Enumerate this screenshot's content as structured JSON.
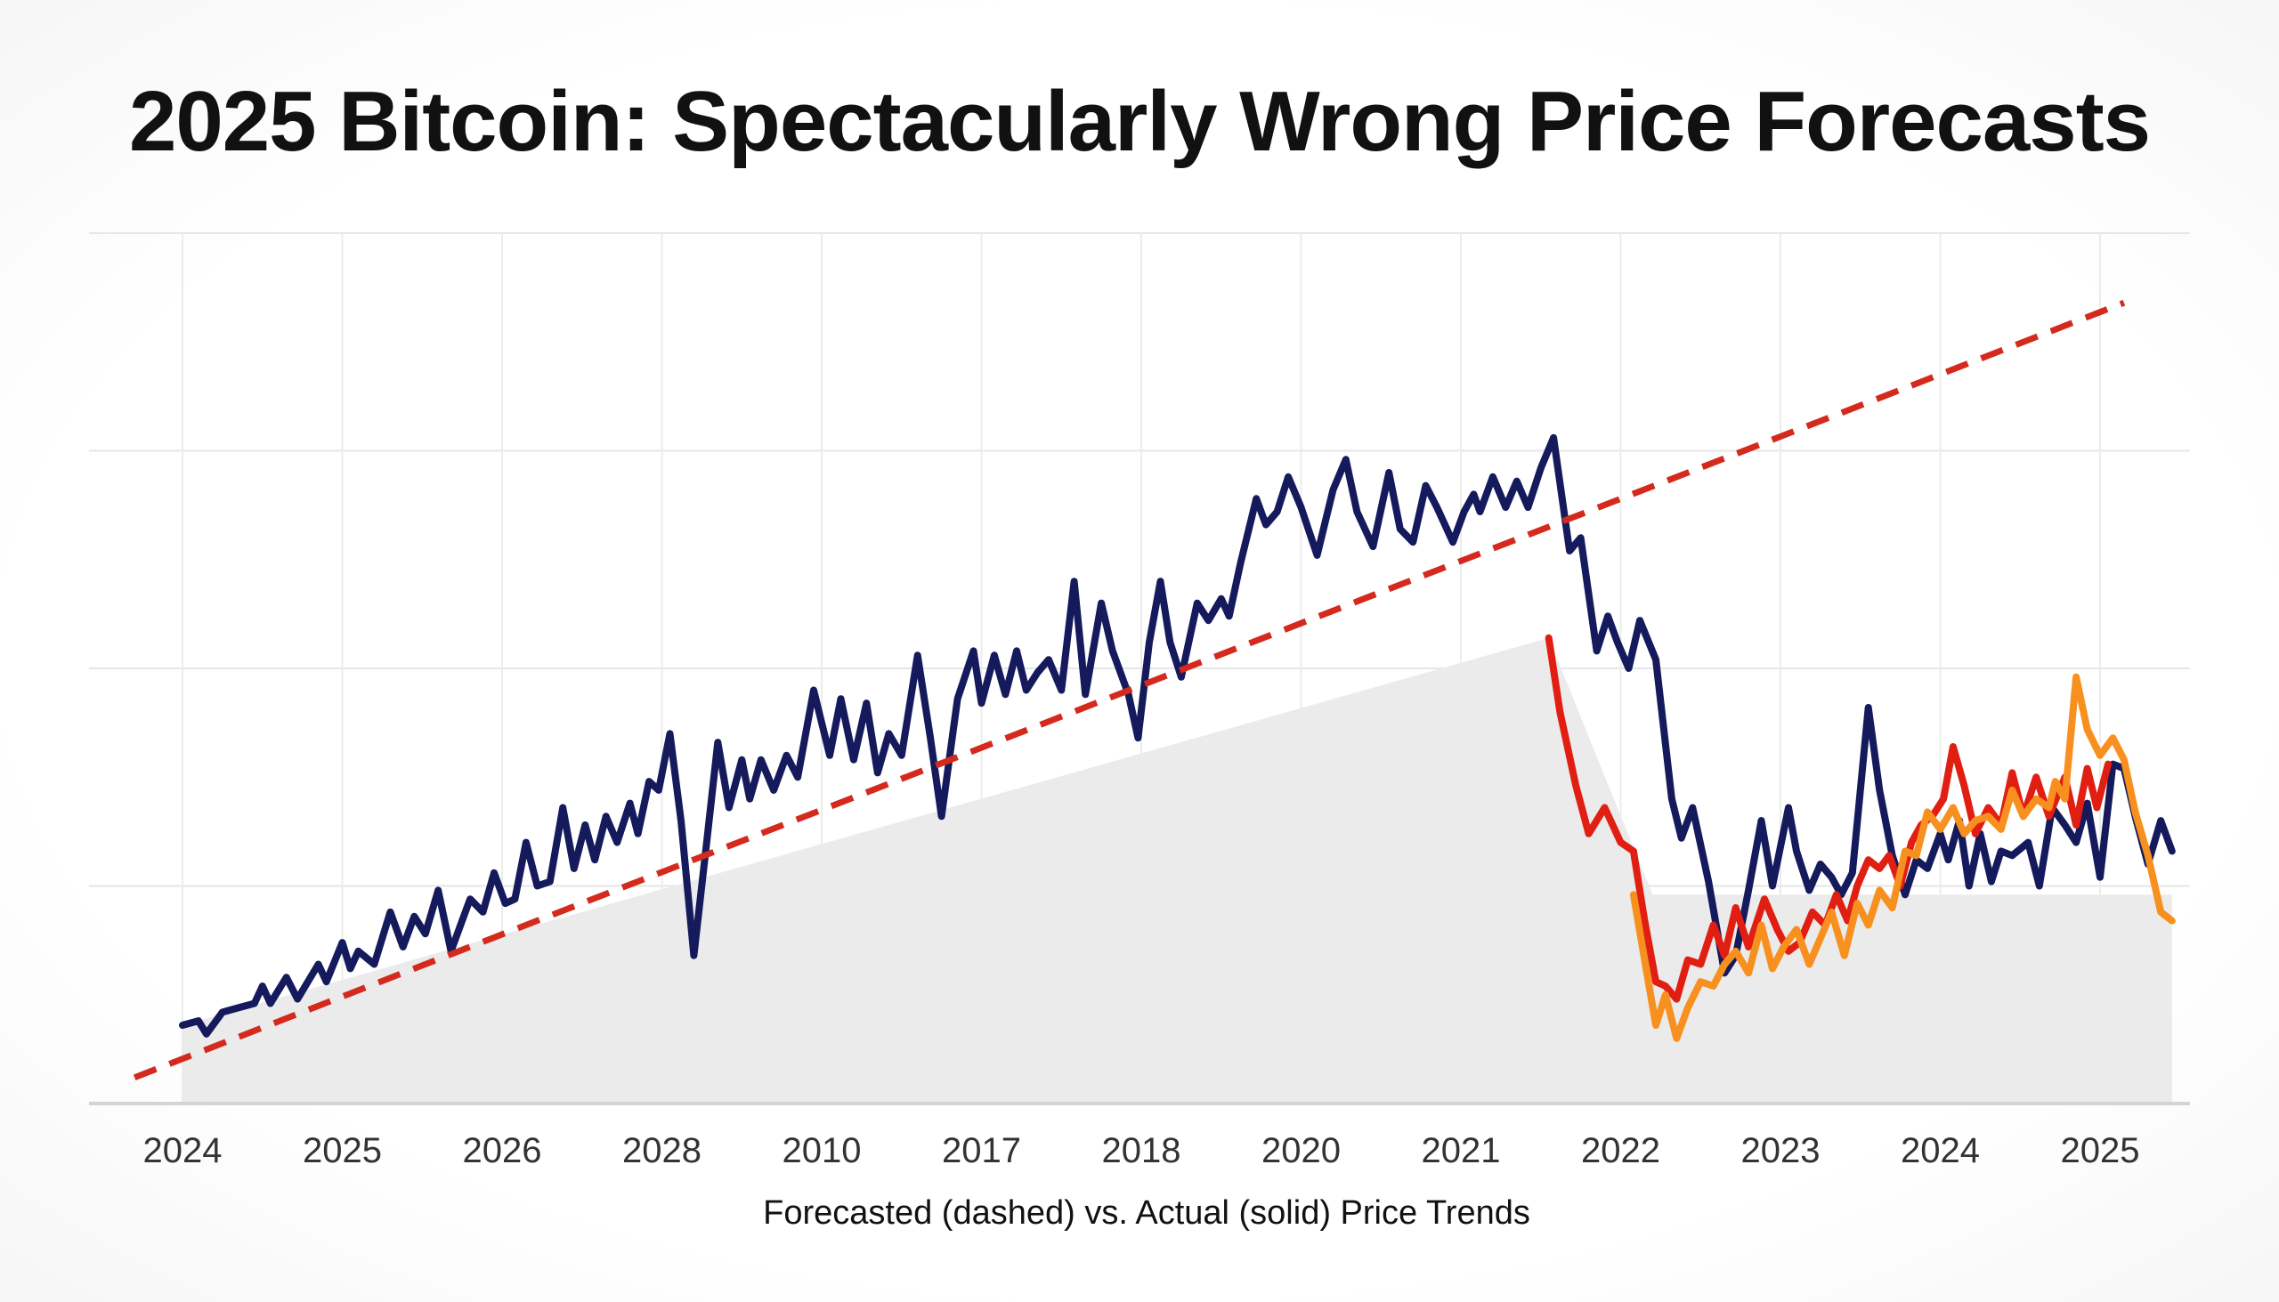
{
  "chart_data": {
    "type": "line",
    "title": "2025 Bitcoin: Spectacularly Wrong Price Forecasts",
    "xlabel": "Forecasted (dashed) vs. Actual (solid) Price Trends",
    "ylabel": "",
    "categories": [
      "2024",
      "2025",
      "2026",
      "2028",
      "2010",
      "2017",
      "2018",
      "2020",
      "2021",
      "2022",
      "2023",
      "2024",
      "2025"
    ],
    "ylim": [
      0,
      100
    ],
    "grid": true,
    "series": [
      {
        "style": "dashed",
        "color": "#d42a1e",
        "points": [
          [
            -0.3,
            3
          ],
          [
            12.15,
            92
          ]
        ]
      },
      {
        "style": "solid",
        "color": "#141a5c",
        "points": [
          [
            0,
            9
          ],
          [
            0.1,
            9.5
          ],
          [
            0.15,
            8
          ],
          [
            0.25,
            10.5
          ],
          [
            0.35,
            11
          ],
          [
            0.45,
            11.5
          ],
          [
            0.5,
            13.5
          ],
          [
            0.55,
            11.5
          ],
          [
            0.65,
            14.5
          ],
          [
            0.72,
            12
          ],
          [
            0.85,
            16
          ],
          [
            0.9,
            14
          ],
          [
            1.0,
            18.5
          ],
          [
            1.05,
            15.5
          ],
          [
            1.1,
            17.5
          ],
          [
            1.2,
            16
          ],
          [
            1.3,
            22
          ],
          [
            1.38,
            18
          ],
          [
            1.45,
            21.5
          ],
          [
            1.52,
            19.5
          ],
          [
            1.6,
            24.5
          ],
          [
            1.68,
            17.5
          ],
          [
            1.75,
            21
          ],
          [
            1.8,
            23.5
          ],
          [
            1.88,
            22
          ],
          [
            1.95,
            26.5
          ],
          [
            2.02,
            23
          ],
          [
            2.08,
            23.5
          ],
          [
            2.15,
            30
          ],
          [
            2.22,
            25
          ],
          [
            2.3,
            25.5
          ],
          [
            2.38,
            34
          ],
          [
            2.45,
            27
          ],
          [
            2.52,
            32
          ],
          [
            2.58,
            28
          ],
          [
            2.65,
            33
          ],
          [
            2.72,
            30
          ],
          [
            2.8,
            34.5
          ],
          [
            2.85,
            31
          ],
          [
            2.92,
            37
          ],
          [
            2.98,
            36
          ],
          [
            3.05,
            42.5
          ],
          [
            3.12,
            32.5
          ],
          [
            3.2,
            17
          ],
          [
            3.28,
            30
          ],
          [
            3.35,
            41.5
          ],
          [
            3.42,
            34
          ],
          [
            3.5,
            39.5
          ],
          [
            3.55,
            35
          ],
          [
            3.62,
            39.5
          ],
          [
            3.7,
            36
          ],
          [
            3.78,
            40
          ],
          [
            3.85,
            37.5
          ],
          [
            3.95,
            47.5
          ],
          [
            4.05,
            40
          ],
          [
            4.12,
            46.5
          ],
          [
            4.2,
            39.5
          ],
          [
            4.28,
            46
          ],
          [
            4.35,
            38
          ],
          [
            4.42,
            42.5
          ],
          [
            4.5,
            40
          ],
          [
            4.6,
            51.5
          ],
          [
            4.68,
            42
          ],
          [
            4.75,
            33
          ],
          [
            4.85,
            46.5
          ],
          [
            4.95,
            52
          ],
          [
            5.0,
            46
          ],
          [
            5.08,
            51.5
          ],
          [
            5.15,
            47
          ],
          [
            5.22,
            52
          ],
          [
            5.28,
            47.5
          ],
          [
            5.35,
            49.5
          ],
          [
            5.42,
            51
          ],
          [
            5.5,
            47.5
          ],
          [
            5.58,
            60
          ],
          [
            5.65,
            47
          ],
          [
            5.75,
            57.5
          ],
          [
            5.82,
            52
          ],
          [
            5.92,
            47
          ],
          [
            5.98,
            42
          ],
          [
            6.05,
            53
          ],
          [
            6.12,
            60
          ],
          [
            6.18,
            53
          ],
          [
            6.25,
            49
          ],
          [
            6.35,
            57.5
          ],
          [
            6.42,
            55.5
          ],
          [
            6.5,
            58
          ],
          [
            6.55,
            56
          ],
          [
            6.62,
            62
          ],
          [
            6.72,
            69.5
          ],
          [
            6.78,
            66.5
          ],
          [
            6.85,
            68
          ],
          [
            6.92,
            72
          ],
          [
            7.0,
            68.5
          ],
          [
            7.1,
            63
          ],
          [
            7.2,
            70.5
          ],
          [
            7.28,
            74
          ],
          [
            7.35,
            68
          ],
          [
            7.45,
            64
          ],
          [
            7.55,
            72.5
          ],
          [
            7.62,
            66
          ],
          [
            7.7,
            64.5
          ],
          [
            7.78,
            71
          ],
          [
            7.85,
            68.5
          ],
          [
            7.95,
            64.5
          ],
          [
            8.02,
            68
          ],
          [
            8.08,
            70
          ],
          [
            8.12,
            68
          ],
          [
            8.2,
            72
          ],
          [
            8.28,
            68.5
          ],
          [
            8.35,
            71.5
          ],
          [
            8.42,
            68.5
          ],
          [
            8.5,
            73
          ],
          [
            8.58,
            76.5
          ],
          [
            8.68,
            63.5
          ],
          [
            8.75,
            65
          ],
          [
            8.85,
            52
          ],
          [
            8.92,
            56
          ],
          [
            8.98,
            53
          ],
          [
            9.05,
            50
          ],
          [
            9.12,
            55.5
          ],
          [
            9.22,
            51
          ],
          [
            9.32,
            35
          ],
          [
            9.38,
            30.5
          ],
          [
            9.45,
            34
          ],
          [
            9.55,
            25.5
          ],
          [
            9.65,
            15
          ],
          [
            9.72,
            17
          ],
          [
            9.8,
            24.5
          ],
          [
            9.88,
            32.5
          ],
          [
            9.95,
            25
          ],
          [
            10.05,
            34
          ],
          [
            10.1,
            29
          ],
          [
            10.18,
            24.5
          ],
          [
            10.25,
            27.5
          ],
          [
            10.32,
            26
          ],
          [
            10.38,
            24
          ],
          [
            10.45,
            26.5
          ],
          [
            10.55,
            45.5
          ],
          [
            10.62,
            36
          ],
          [
            10.7,
            28.5
          ],
          [
            10.78,
            24
          ],
          [
            10.85,
            28
          ],
          [
            10.92,
            27
          ],
          [
            11.0,
            31
          ],
          [
            11.05,
            28
          ],
          [
            11.12,
            32.5
          ],
          [
            11.18,
            25
          ],
          [
            11.25,
            31
          ],
          [
            11.32,
            25.5
          ],
          [
            11.38,
            29
          ],
          [
            11.45,
            28.5
          ],
          [
            11.55,
            30
          ],
          [
            11.62,
            25
          ],
          [
            11.7,
            34
          ],
          [
            11.78,
            32
          ],
          [
            11.85,
            30
          ],
          [
            11.92,
            34.5
          ],
          [
            12.0,
            26
          ],
          [
            12.08,
            39
          ],
          [
            12.15,
            38.5
          ],
          [
            12.22,
            33
          ],
          [
            12.3,
            27.5
          ],
          [
            12.38,
            32.5
          ],
          [
            12.45,
            29
          ]
        ]
      },
      {
        "style": "solid",
        "color": "#e01e12",
        "points": [
          [
            8.55,
            53.5
          ],
          [
            8.62,
            45
          ],
          [
            8.72,
            36.5
          ],
          [
            8.8,
            31
          ],
          [
            8.9,
            34
          ],
          [
            9.0,
            30
          ],
          [
            9.08,
            29
          ],
          [
            9.15,
            21
          ],
          [
            9.22,
            14
          ],
          [
            9.28,
            13.5
          ],
          [
            9.35,
            12
          ],
          [
            9.42,
            16.5
          ],
          [
            9.5,
            16
          ],
          [
            9.58,
            20.5
          ],
          [
            9.65,
            17
          ],
          [
            9.72,
            22.5
          ],
          [
            9.8,
            18
          ],
          [
            9.9,
            23.5
          ],
          [
            9.98,
            20
          ],
          [
            10.05,
            17.5
          ],
          [
            10.12,
            18.5
          ],
          [
            10.2,
            22
          ],
          [
            10.28,
            20.5
          ],
          [
            10.35,
            24
          ],
          [
            10.42,
            21
          ],
          [
            10.48,
            25
          ],
          [
            10.55,
            28
          ],
          [
            10.62,
            27
          ],
          [
            10.68,
            28.5
          ],
          [
            10.75,
            25
          ],
          [
            10.82,
            30
          ],
          [
            10.88,
            32
          ],
          [
            10.95,
            33
          ],
          [
            11.02,
            35
          ],
          [
            11.08,
            41
          ],
          [
            11.15,
            36.5
          ],
          [
            11.22,
            31
          ],
          [
            11.3,
            34
          ],
          [
            11.38,
            32
          ],
          [
            11.45,
            38
          ],
          [
            11.52,
            33
          ],
          [
            11.6,
            37.5
          ],
          [
            11.68,
            33
          ],
          [
            11.78,
            37.5
          ],
          [
            11.85,
            32
          ],
          [
            11.92,
            38.5
          ],
          [
            11.98,
            34
          ],
          [
            12.05,
            39
          ]
        ]
      },
      {
        "style": "solid",
        "color": "#f7901e",
        "points": [
          [
            9.08,
            24
          ],
          [
            9.15,
            16.5
          ],
          [
            9.22,
            9
          ],
          [
            9.28,
            12.5
          ],
          [
            9.35,
            7.5
          ],
          [
            9.42,
            11
          ],
          [
            9.5,
            14
          ],
          [
            9.58,
            13.5
          ],
          [
            9.65,
            16
          ],
          [
            9.72,
            17.5
          ],
          [
            9.8,
            15
          ],
          [
            9.88,
            20.5
          ],
          [
            9.95,
            15.5
          ],
          [
            10.02,
            18
          ],
          [
            10.1,
            20
          ],
          [
            10.18,
            16
          ],
          [
            10.25,
            19
          ],
          [
            10.32,
            22
          ],
          [
            10.4,
            17
          ],
          [
            10.48,
            23
          ],
          [
            10.55,
            20.5
          ],
          [
            10.62,
            24.5
          ],
          [
            10.7,
            22.5
          ],
          [
            10.78,
            29
          ],
          [
            10.85,
            28.5
          ],
          [
            10.92,
            33.5
          ],
          [
            11.0,
            31.5
          ],
          [
            11.08,
            34
          ],
          [
            11.15,
            31
          ],
          [
            11.22,
            32.5
          ],
          [
            11.3,
            33
          ],
          [
            11.38,
            31.5
          ],
          [
            11.45,
            36
          ],
          [
            11.52,
            33
          ],
          [
            11.6,
            35
          ],
          [
            11.68,
            34
          ],
          [
            11.72,
            37
          ],
          [
            11.78,
            35
          ],
          [
            11.85,
            49
          ],
          [
            11.92,
            43
          ],
          [
            12.0,
            40
          ],
          [
            12.08,
            42
          ],
          [
            12.15,
            39.5
          ],
          [
            12.22,
            33.5
          ],
          [
            12.3,
            28.5
          ],
          [
            12.38,
            22
          ],
          [
            12.45,
            21
          ]
        ]
      }
    ],
    "area": {
      "color": "#ebebeb",
      "points": [
        [
          0,
          9
        ],
        [
          8.55,
          53.5
        ],
        [
          9.2,
          24
        ],
        [
          12.45,
          24
        ],
        [
          12.45,
          0
        ],
        [
          0,
          0
        ]
      ]
    }
  }
}
